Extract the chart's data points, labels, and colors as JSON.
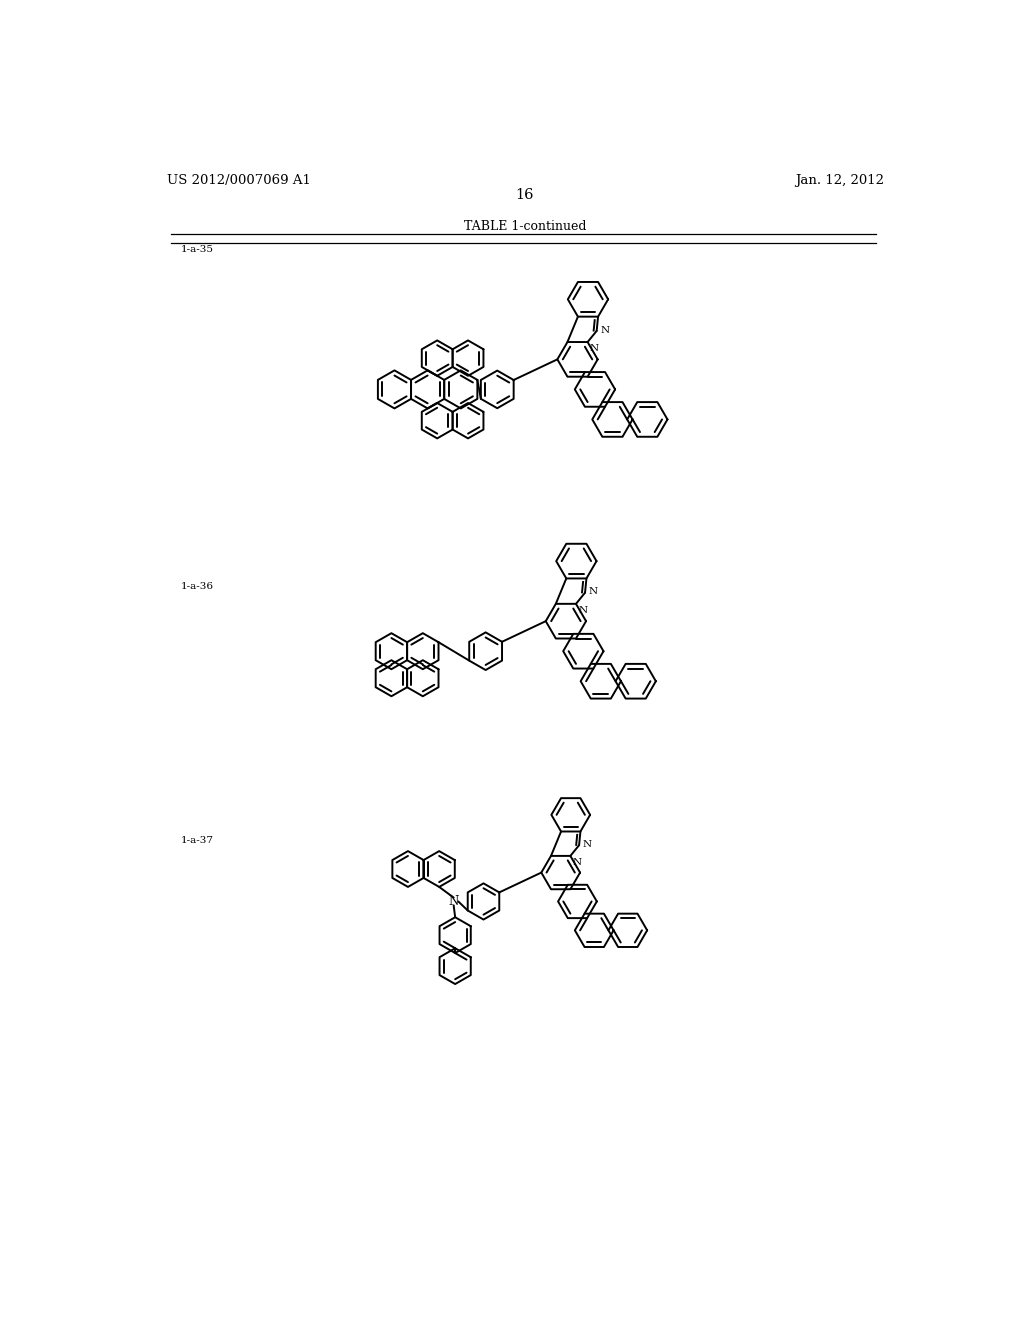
{
  "background_color": "#ffffff",
  "page_number": "16",
  "patent_left": "US 2012/0007069 A1",
  "patent_right": "Jan. 12, 2012",
  "table_title": "TABLE 1-continued",
  "label_35": "1-a-35",
  "label_36": "1-a-36",
  "label_37": "1-a-37",
  "line_color": "#000000",
  "line_width": 1.4,
  "font_size_label": 7.5,
  "font_size_header": 9,
  "font_size_page": 9.5,
  "font_size_atom": 7.5
}
